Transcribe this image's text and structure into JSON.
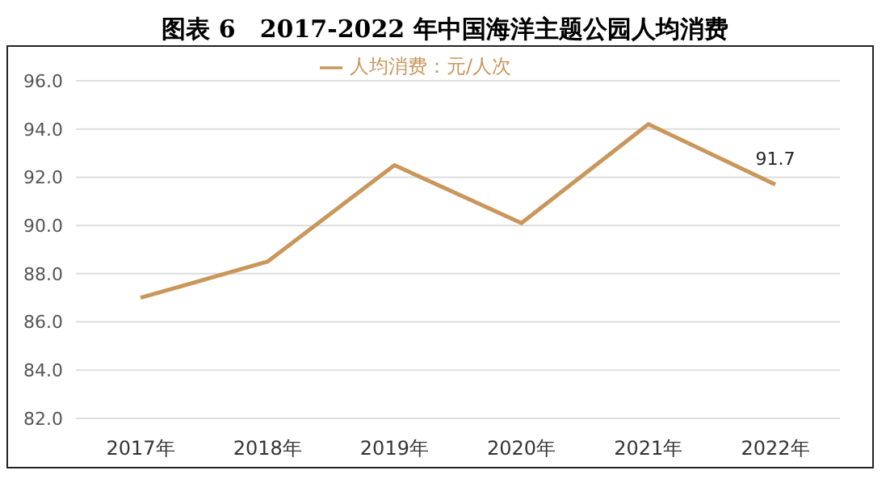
{
  "chart_data": {
    "type": "line",
    "title": "图表 6　2017-2022 年中国海洋主题公园人均消费",
    "categories": [
      "2017年",
      "2018年",
      "2019年",
      "2020年",
      "2021年",
      "2022年"
    ],
    "series": [
      {
        "name": "人均消费：元/人次",
        "color": "#c9975b",
        "values": [
          87.0,
          88.5,
          92.5,
          90.1,
          94.2,
          91.7
        ],
        "value_labels": [
          null,
          null,
          null,
          null,
          null,
          "91.7"
        ]
      }
    ],
    "ylim": [
      82,
      96
    ],
    "yticks": [
      {
        "value": 82,
        "label": "82.0"
      },
      {
        "value": 84,
        "label": "84.0"
      },
      {
        "value": 86,
        "label": "86.0"
      },
      {
        "value": 88,
        "label": "88.0"
      },
      {
        "value": 90,
        "label": "90.0"
      },
      {
        "value": 92,
        "label": "92.0"
      },
      {
        "value": 94,
        "label": "94.0"
      },
      {
        "value": 96,
        "label": "96.0"
      }
    ],
    "grid": "y",
    "legend": "top",
    "marker": "none",
    "line_style": "solid"
  }
}
